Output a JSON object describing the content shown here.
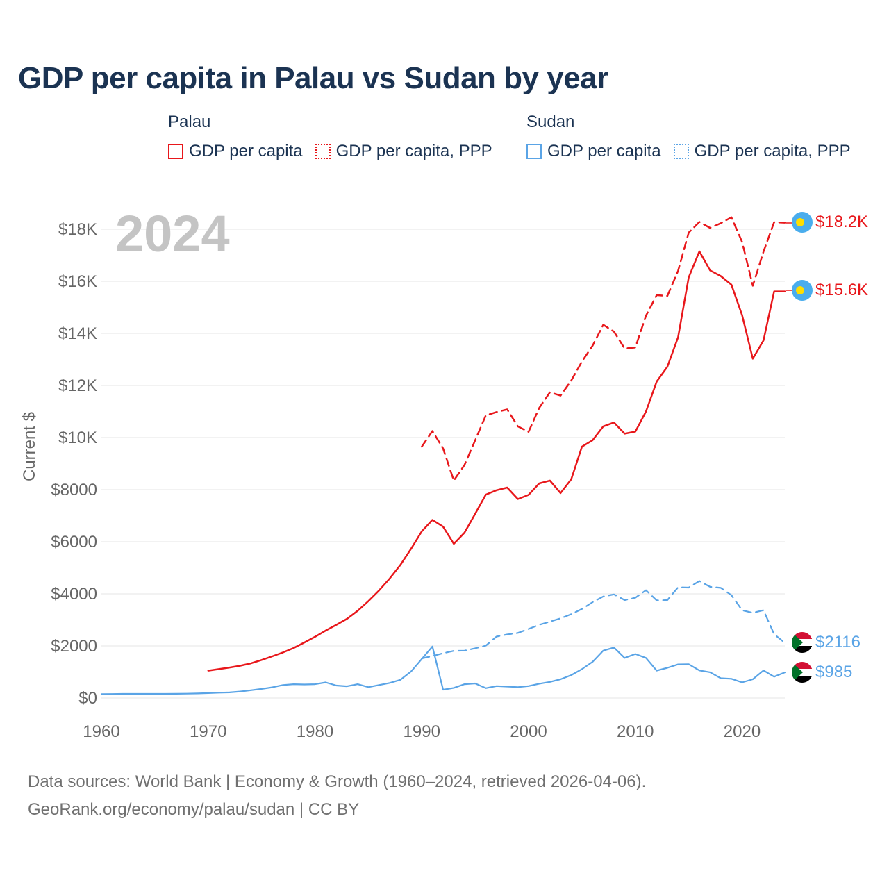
{
  "title": "GDP per capita in Palau vs Sudan by year",
  "legend": {
    "groups": [
      {
        "name": "Palau",
        "items": [
          {
            "label": "GDP per capita",
            "style": "solid",
            "color": "#e8171b"
          },
          {
            "label": "GDP per capita, PPP",
            "style": "dotted",
            "color": "#e8171b"
          }
        ]
      },
      {
        "name": "Sudan",
        "items": [
          {
            "label": "GDP per capita",
            "style": "solid",
            "color": "#5aa4e6"
          },
          {
            "label": "GDP per capita, PPP",
            "style": "dotted",
            "color": "#5aa4e6"
          }
        ]
      }
    ]
  },
  "year_overlay": "2024",
  "end_labels": {
    "palau_ppp": "$18.2K",
    "palau_gdp": "$15.6K",
    "sudan_ppp": "$2116",
    "sudan_gdp": "$985"
  },
  "footer": {
    "line1": "Data sources: World Bank | Economy & Growth (1960–2024, retrieved 2026-04-06).",
    "line2": "GeoRank.org/economy/palau/sudan | CC BY"
  },
  "colors": {
    "palau": "#e8171b",
    "sudan": "#5aa4e6",
    "grid": "#e6e6e6",
    "axis_text": "#666666"
  },
  "chart_data": {
    "type": "line",
    "title": "GDP per capita in Palau vs Sudan by year",
    "xlabel": "",
    "ylabel": "Current $",
    "xlim": [
      1960,
      2024
    ],
    "ylim": [
      0,
      18500
    ],
    "x_ticks": [
      1960,
      1970,
      1980,
      1990,
      2000,
      2010,
      2020
    ],
    "x_tick_labels": [
      "1960",
      "1970",
      "1980",
      "1990",
      "2000",
      "2010",
      "2020"
    ],
    "y_ticks": [
      0,
      2000,
      4000,
      6000,
      8000,
      10000,
      12000,
      14000,
      16000,
      18000
    ],
    "y_tick_labels": [
      "$0",
      "$2000",
      "$4000",
      "$6000",
      "$8000",
      "$10K",
      "$12K",
      "$14K",
      "$16K",
      "$18K"
    ],
    "grid": true,
    "series": [
      {
        "name": "Palau GDP per capita",
        "country": "Palau",
        "style": "solid",
        "x": [
          1970,
          1971,
          1972,
          1973,
          1974,
          1975,
          1976,
          1977,
          1978,
          1979,
          1980,
          1981,
          1982,
          1983,
          1984,
          1985,
          1986,
          1987,
          1988,
          1989,
          1990,
          1991,
          1992,
          1993,
          1994,
          1995,
          1996,
          1997,
          1998,
          1999,
          2000,
          2001,
          2002,
          2003,
          2004,
          2005,
          2006,
          2007,
          2008,
          2009,
          2010,
          2011,
          2012,
          2013,
          2014,
          2015,
          2016,
          2017,
          2018,
          2019,
          2020,
          2021,
          2022,
          2023,
          2024
        ],
        "y": [
          1050,
          1110,
          1170,
          1240,
          1330,
          1460,
          1600,
          1750,
          1920,
          2130,
          2350,
          2590,
          2810,
          3040,
          3350,
          3720,
          4130,
          4590,
          5110,
          5730,
          6400,
          6840,
          6580,
          5920,
          6350,
          7070,
          7810,
          7980,
          8080,
          7640,
          7800,
          8240,
          8350,
          7870,
          8400,
          9650,
          9900,
          10430,
          10580,
          10150,
          10230,
          11000,
          12150,
          12720,
          13850,
          16150,
          17150,
          16420,
          16200,
          15870,
          14700,
          13030,
          13730,
          15610,
          15610
        ]
      },
      {
        "name": "Palau GDP per capita, PPP",
        "country": "Palau",
        "style": "dashed",
        "x": [
          1990,
          1991,
          1992,
          1993,
          1994,
          1995,
          1996,
          1997,
          1998,
          1999,
          2000,
          2001,
          2002,
          2003,
          2004,
          2005,
          2006,
          2007,
          2008,
          2009,
          2010,
          2011,
          2012,
          2013,
          2014,
          2015,
          2016,
          2017,
          2018,
          2019,
          2020,
          2021,
          2022,
          2023,
          2024
        ],
        "y": [
          9650,
          10250,
          9580,
          8350,
          8950,
          9890,
          10850,
          10980,
          11080,
          10430,
          10220,
          11140,
          11740,
          11610,
          12190,
          12920,
          13530,
          14330,
          14070,
          13420,
          13460,
          14680,
          15470,
          15440,
          16400,
          17870,
          18280,
          18050,
          18230,
          18460,
          17510,
          15830,
          17140,
          18270,
          18250
        ]
      },
      {
        "name": "Sudan GDP per capita",
        "country": "Sudan",
        "style": "solid",
        "x": [
          1960,
          1961,
          1962,
          1963,
          1964,
          1965,
          1966,
          1967,
          1968,
          1969,
          1970,
          1971,
          1972,
          1973,
          1974,
          1975,
          1976,
          1977,
          1978,
          1979,
          1980,
          1981,
          1982,
          1983,
          1984,
          1985,
          1986,
          1987,
          1988,
          1989,
          1990,
          1991,
          1992,
          1993,
          1994,
          1995,
          1996,
          1997,
          1998,
          1999,
          2000,
          2001,
          2002,
          2003,
          2004,
          2005,
          2006,
          2007,
          2008,
          2009,
          2010,
          2011,
          2012,
          2013,
          2014,
          2015,
          2016,
          2017,
          2018,
          2019,
          2020,
          2021,
          2022,
          2023,
          2024
        ],
        "y": [
          150,
          155,
          160,
          160,
          160,
          160,
          160,
          162,
          168,
          175,
          190,
          205,
          215,
          250,
          300,
          350,
          410,
          500,
          530,
          520,
          530,
          600,
          480,
          450,
          530,
          420,
          500,
          580,
          700,
          1020,
          1500,
          1980,
          320,
          390,
          530,
          560,
          380,
          460,
          440,
          420,
          460,
          550,
          620,
          720,
          880,
          1110,
          1390,
          1820,
          1940,
          1540,
          1690,
          1540,
          1050,
          1160,
          1290,
          1300,
          1060,
          990,
          760,
          740,
          600,
          720,
          1060,
          820,
          985
        ]
      },
      {
        "name": "Sudan GDP per capita, PPP",
        "country": "Sudan",
        "style": "dashed",
        "x": [
          1990,
          1991,
          1992,
          1993,
          1994,
          1995,
          1996,
          1997,
          1998,
          1999,
          2000,
          2001,
          2002,
          2003,
          2004,
          2005,
          2006,
          2007,
          2008,
          2009,
          2010,
          2011,
          2012,
          2013,
          2014,
          2015,
          2016,
          2017,
          2018,
          2019,
          2020,
          2021,
          2022,
          2023,
          2024
        ],
        "y": [
          1520,
          1610,
          1720,
          1810,
          1820,
          1910,
          2010,
          2360,
          2440,
          2500,
          2650,
          2810,
          2930,
          3060,
          3220,
          3420,
          3680,
          3900,
          3980,
          3760,
          3850,
          4140,
          3750,
          3760,
          4250,
          4240,
          4490,
          4270,
          4230,
          3950,
          3370,
          3270,
          3370,
          2450,
          2116
        ]
      }
    ]
  }
}
